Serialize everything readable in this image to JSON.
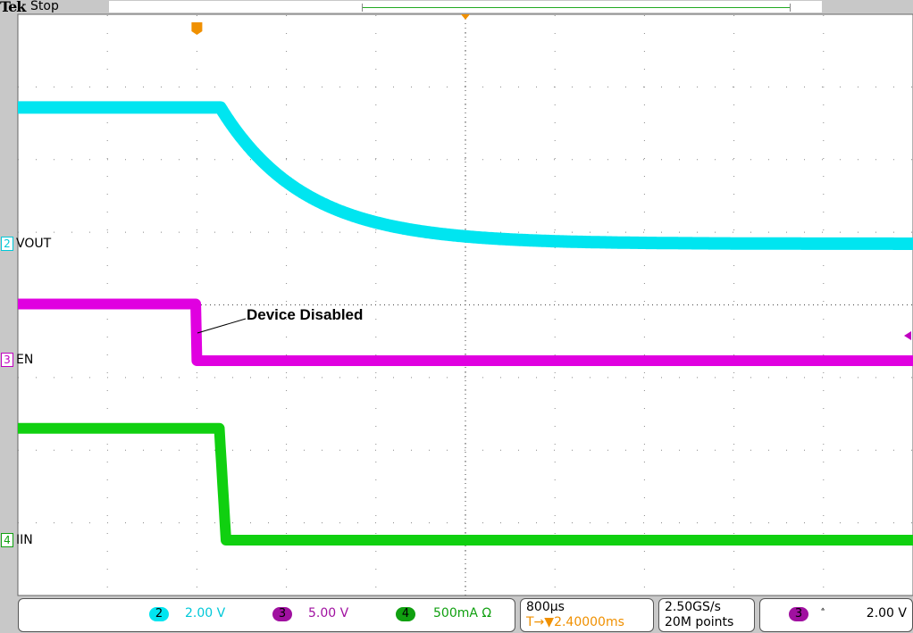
{
  "header": {
    "brand": "Tek",
    "status": "Stop"
  },
  "channels": [
    {
      "num": "2",
      "label": "VOUT",
      "scale": "2.00 V",
      "color": "#00e5f0"
    },
    {
      "num": "3",
      "label": "EN",
      "scale": "5.00 V",
      "color": "#e000e0"
    },
    {
      "num": "4",
      "label": "IIN",
      "scale": "500mA Ω",
      "color": "#10d010"
    }
  ],
  "timebase": {
    "scale": "800µs",
    "trigger_position": "2.40000ms",
    "trigger_prefix": "T→▼"
  },
  "acquisition": {
    "sample_rate": "2.50GS/s",
    "record_length": "20M points"
  },
  "trigger": {
    "source": "3",
    "slope": "falling",
    "level": "2.00 V"
  },
  "annotation": "Device Disabled",
  "chart_data": {
    "type": "line",
    "x_unit": "ms (relative to trigger)",
    "xlim": [
      -1.6,
      6.4
    ],
    "x_per_div_ms": 0.8,
    "grid": true,
    "series": [
      {
        "name": "VOUT",
        "channel": "2",
        "volts_per_div": 2.0,
        "initial": 3.75,
        "final": 0.0,
        "step_time_ms": 0.21,
        "tau_ms": 0.75,
        "shape": "exponential-decay"
      },
      {
        "name": "EN",
        "channel": "3",
        "volts_per_div": 5.0,
        "initial": 3.9,
        "final": 0.0,
        "step_time_ms": 0.0,
        "shape": "step-down"
      },
      {
        "name": "IIN",
        "channel": "4",
        "amps_per_div": 0.5,
        "initial": 0.77,
        "final": 0.0,
        "step_time_ms": 0.2,
        "fall_ms": 0.06,
        "shape": "step-down"
      }
    ]
  }
}
